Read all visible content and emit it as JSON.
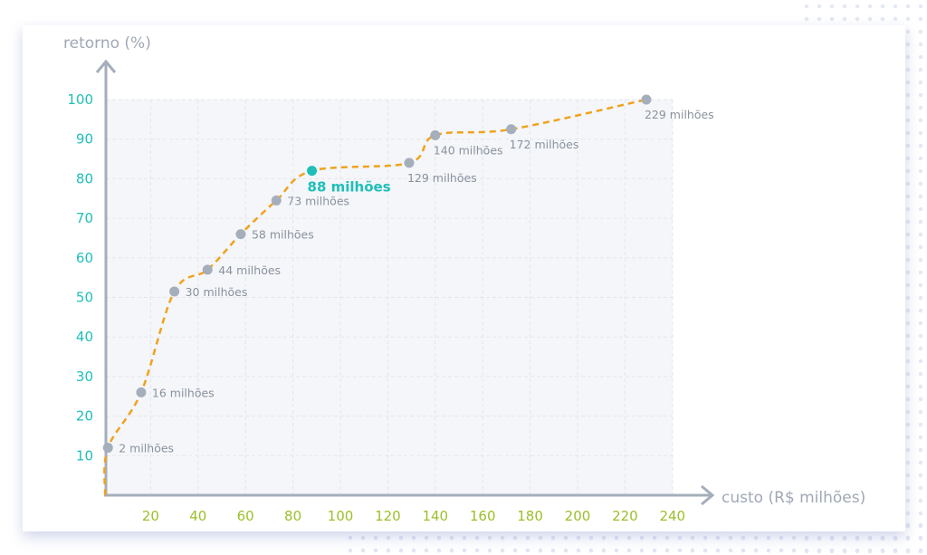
{
  "chart_data": {
    "type": "line",
    "xlabel": "custo (R$ milhões)",
    "ylabel": "retorno (%)",
    "xlim": [
      0,
      240
    ],
    "ylim": [
      0,
      100
    ],
    "x_ticks": [
      "20",
      "40",
      "60",
      "80",
      "100",
      "120",
      "140",
      "160",
      "180",
      "200",
      "220",
      "240"
    ],
    "y_ticks": [
      "10",
      "20",
      "30",
      "40",
      "50",
      "60",
      "70",
      "80",
      "90",
      "100"
    ],
    "grid": true,
    "line_style": "dashed smooth",
    "points": [
      {
        "x": 2,
        "y": 12,
        "label": "2 milhões"
      },
      {
        "x": 16,
        "y": 26,
        "label": "16 milhões"
      },
      {
        "x": 30,
        "y": 51.5,
        "label": "30 milhões"
      },
      {
        "x": 44,
        "y": 57,
        "label": "44 milhões"
      },
      {
        "x": 58,
        "y": 66,
        "label": "58 milhões"
      },
      {
        "x": 73,
        "y": 74.5,
        "label": "73 milhões"
      },
      {
        "x": 88,
        "y": 82,
        "label": "88 milhões",
        "highlight": true
      },
      {
        "x": 129,
        "y": 84,
        "label": "129 milhões"
      },
      {
        "x": 140,
        "y": 91,
        "label": "140 milhões"
      },
      {
        "x": 172,
        "y": 92.5,
        "label": "172 milhões"
      },
      {
        "x": 229,
        "y": 100,
        "label": "229 milhões"
      }
    ],
    "colors": {
      "line": "#f0a21e",
      "point": "#a5aebb",
      "highlight": "#1fbfb8",
      "y_ticks": "#1fbfb8",
      "x_ticks": "#9cbf2a",
      "axis": "#a5aebb"
    }
  }
}
